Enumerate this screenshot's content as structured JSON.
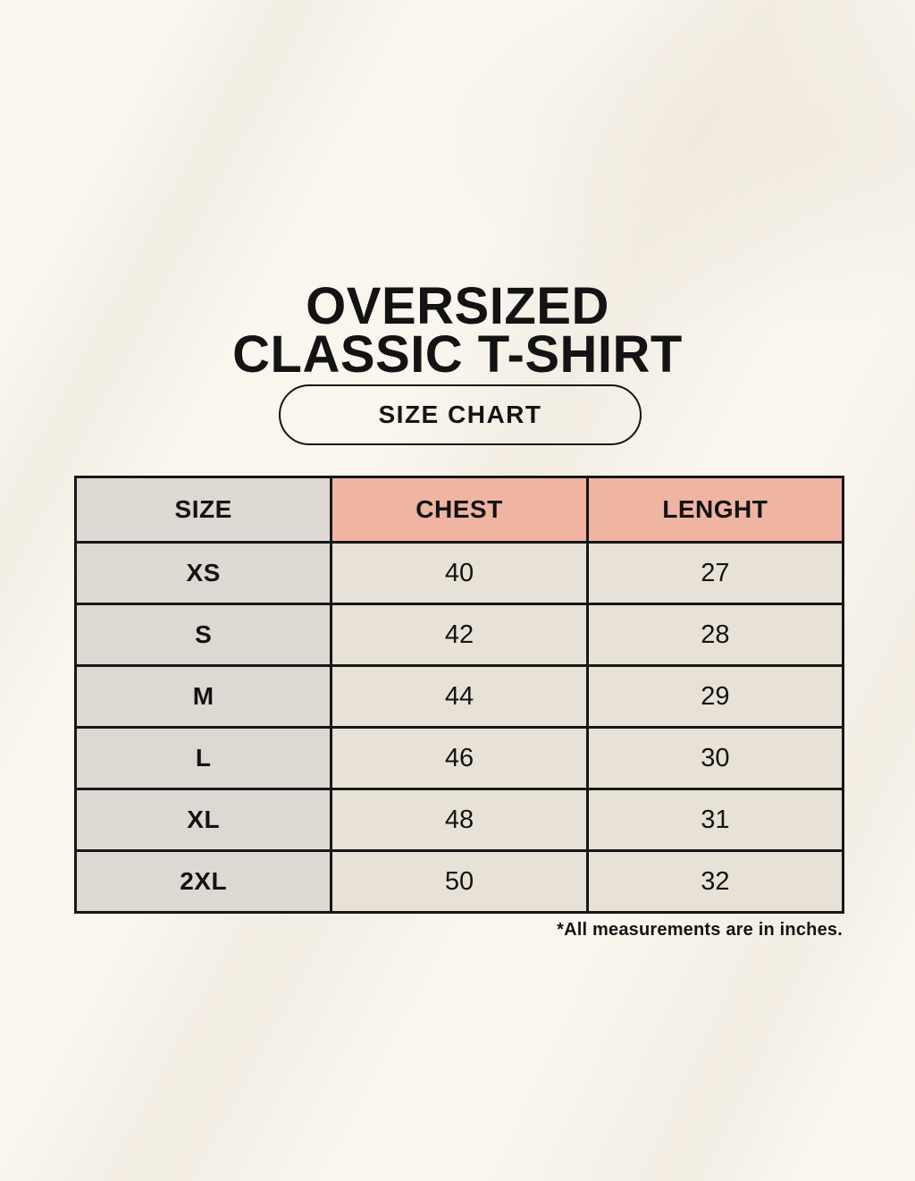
{
  "title": {
    "line1": "OVERSIZED",
    "line2": "CLASSIC T-SHIRT"
  },
  "size_chart_button": {
    "label": "SIZE CHART"
  },
  "table": {
    "headers": [
      "SIZE",
      "CHEST",
      "LENGHT"
    ],
    "rows": [
      {
        "size": "XS",
        "chest": "40",
        "length": "27"
      },
      {
        "size": "S",
        "chest": "42",
        "length": "28"
      },
      {
        "size": "M",
        "chest": "44",
        "length": "29"
      },
      {
        "size": "L",
        "chest": "46",
        "length": "30"
      },
      {
        "size": "XL",
        "chest": "48",
        "length": "31"
      },
      {
        "size": "2XL",
        "chest": "50",
        "length": "32"
      }
    ]
  },
  "footnote": "*All measurements are in inches.",
  "colors": {
    "page_background": "#faf6ee",
    "header_pink": "#f0b4a3",
    "column_gray": "#ddd8d1",
    "cell_cream": "#e8e2d6",
    "table_border": "#171717",
    "text": "#131313"
  },
  "chart_data": {
    "type": "table",
    "title": "OVERSIZED CLASSIC T-SHIRT",
    "subtitle": "SIZE CHART",
    "columns": [
      "SIZE",
      "CHEST",
      "LENGHT"
    ],
    "rows": [
      [
        "XS",
        40,
        27
      ],
      [
        "S",
        42,
        28
      ],
      [
        "M",
        44,
        29
      ],
      [
        "L",
        46,
        30
      ],
      [
        "XL",
        48,
        31
      ],
      [
        "2XL",
        50,
        32
      ]
    ],
    "footnote": "*All measurements are in inches."
  }
}
